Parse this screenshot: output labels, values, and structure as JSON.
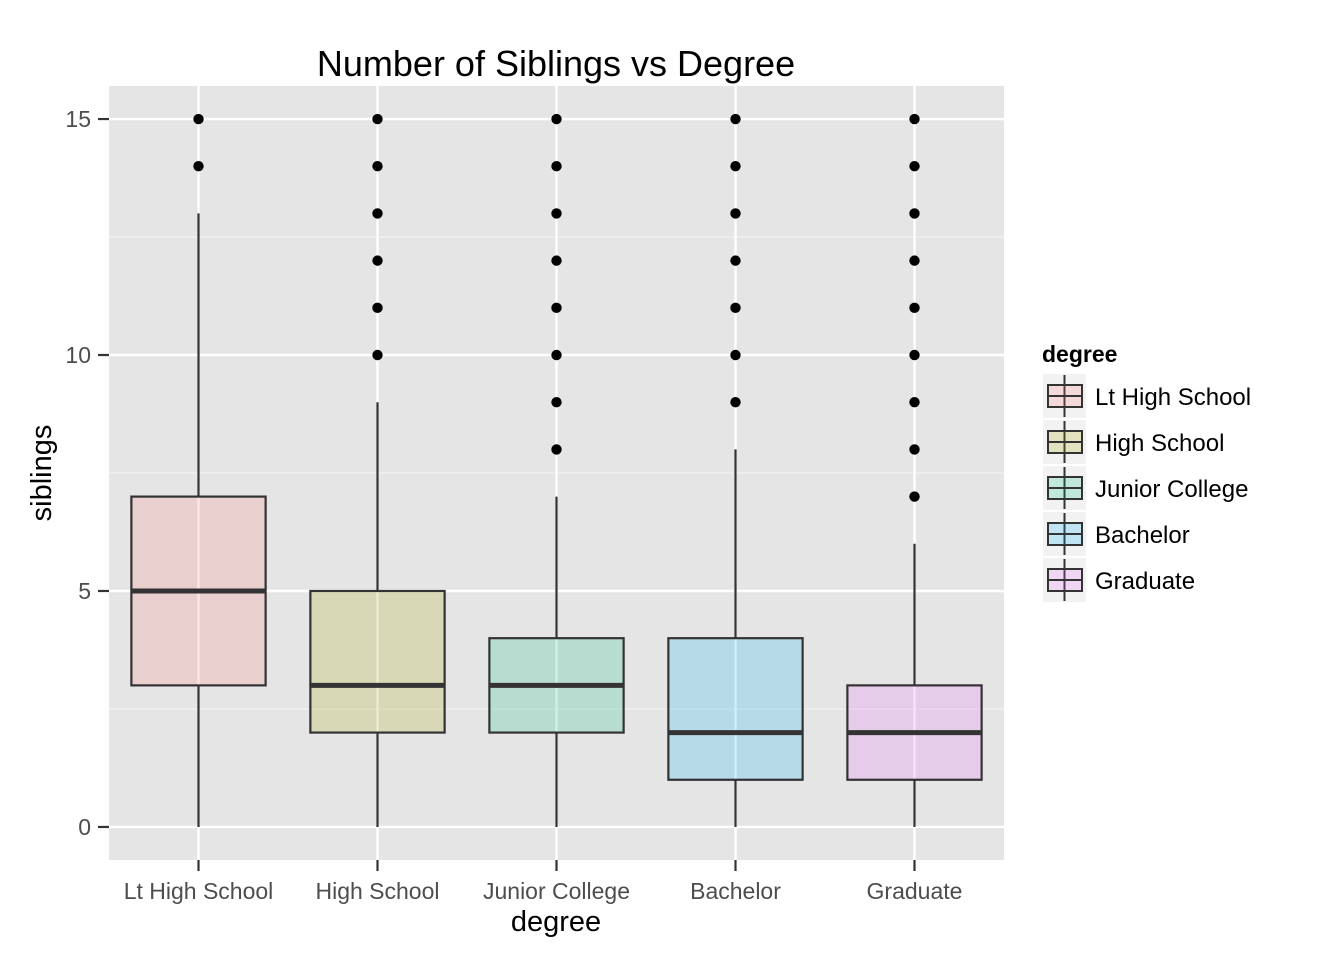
{
  "chart_data": {
    "type": "boxplot",
    "title": "Number of Siblings vs Degree",
    "xlabel": "degree",
    "ylabel": "siblings",
    "ylim": [
      -0.7,
      15.7
    ],
    "yticks": [
      0,
      5,
      10,
      15
    ],
    "grid": true,
    "legend": {
      "title": "degree",
      "position": "right"
    },
    "categories": [
      "Lt High School",
      "High School",
      "Junior College",
      "Bachelor",
      "Graduate"
    ],
    "boxes": [
      {
        "name": "Lt High School",
        "color": "#F8766D",
        "whisker_low": 0,
        "q1": 3,
        "median": 5,
        "q3": 7,
        "whisker_high": 13,
        "outliers": [
          14,
          15
        ]
      },
      {
        "name": "High School",
        "color": "#A3A500",
        "whisker_low": 0,
        "q1": 2,
        "median": 3,
        "q3": 5,
        "whisker_high": 9,
        "outliers": [
          10,
          11,
          12,
          13,
          14,
          15
        ]
      },
      {
        "name": "Junior College",
        "color": "#00BF7D",
        "whisker_low": 0,
        "q1": 2,
        "median": 3,
        "q3": 4,
        "whisker_high": 7,
        "outliers": [
          8,
          9,
          10,
          11,
          12,
          13,
          14,
          15
        ]
      },
      {
        "name": "Bachelor",
        "color": "#00B0F6",
        "whisker_low": 0,
        "q1": 1,
        "median": 2,
        "q3": 4,
        "whisker_high": 8,
        "outliers": [
          9,
          10,
          11,
          12,
          13,
          14,
          15
        ]
      },
      {
        "name": "Graduate",
        "color": "#E76BF3",
        "whisker_low": 0,
        "q1": 1,
        "median": 2,
        "q3": 3,
        "whisker_high": 6,
        "outliers": [
          7,
          8,
          9,
          10,
          11,
          12,
          13,
          14,
          15
        ]
      }
    ],
    "colors": {
      "panel_background": "#E5E5E5",
      "grid_major": "#FFFFFF",
      "box_outline": "#333333",
      "outlier": "#000000"
    }
  }
}
